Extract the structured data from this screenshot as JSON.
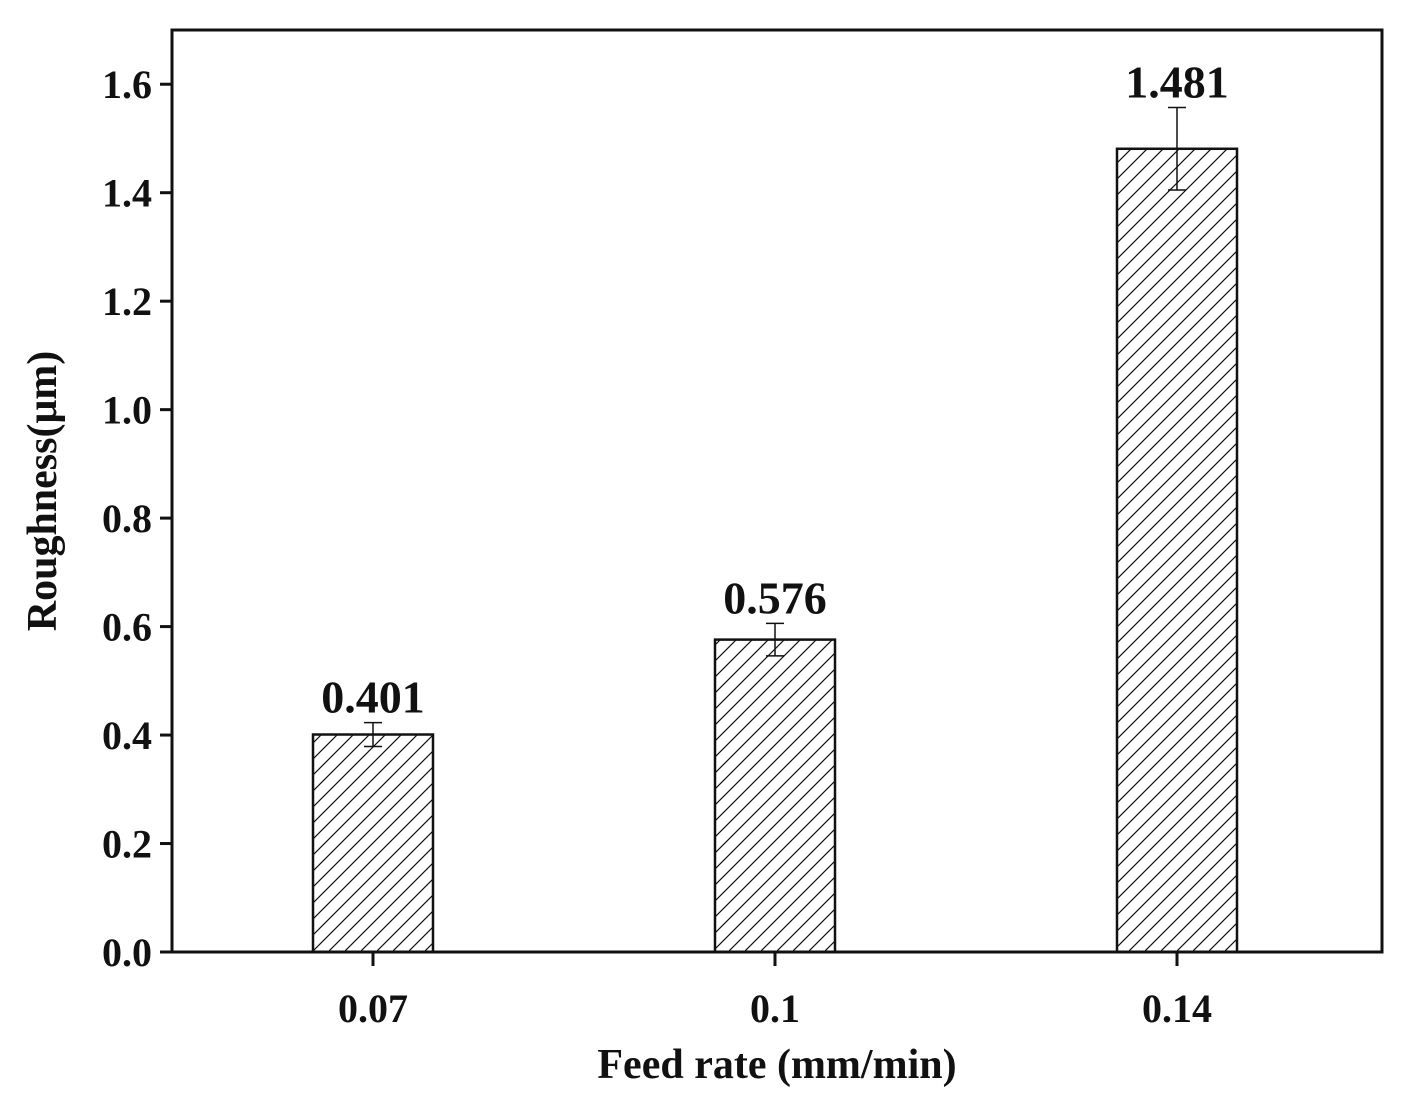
{
  "chart_data": {
    "type": "bar",
    "title": "",
    "xlabel": "Feed rate (mm/min)",
    "ylabel": "Roughness(μm)",
    "categories": [
      "0.07",
      "0.1",
      "0.14"
    ],
    "values": [
      0.401,
      0.576,
      1.481
    ],
    "value_labels": [
      "0.401",
      "0.576",
      "1.481"
    ],
    "errors": [
      0.022,
      0.03,
      0.076
    ],
    "ylim": [
      0,
      1.7
    ],
    "yticks": [
      0.0,
      0.2,
      0.4,
      0.6,
      0.8,
      1.0,
      1.2,
      1.4,
      1.6
    ],
    "ytick_labels": [
      "0.0",
      "0.2",
      "0.4",
      "0.6",
      "0.8",
      "1.0",
      "1.2",
      "1.4",
      "1.6"
    ],
    "bar_fill": "hatched diagonal",
    "grid": false,
    "legend": "none"
  },
  "colors": {
    "ink": "#111111",
    "background": "#ffffff"
  }
}
